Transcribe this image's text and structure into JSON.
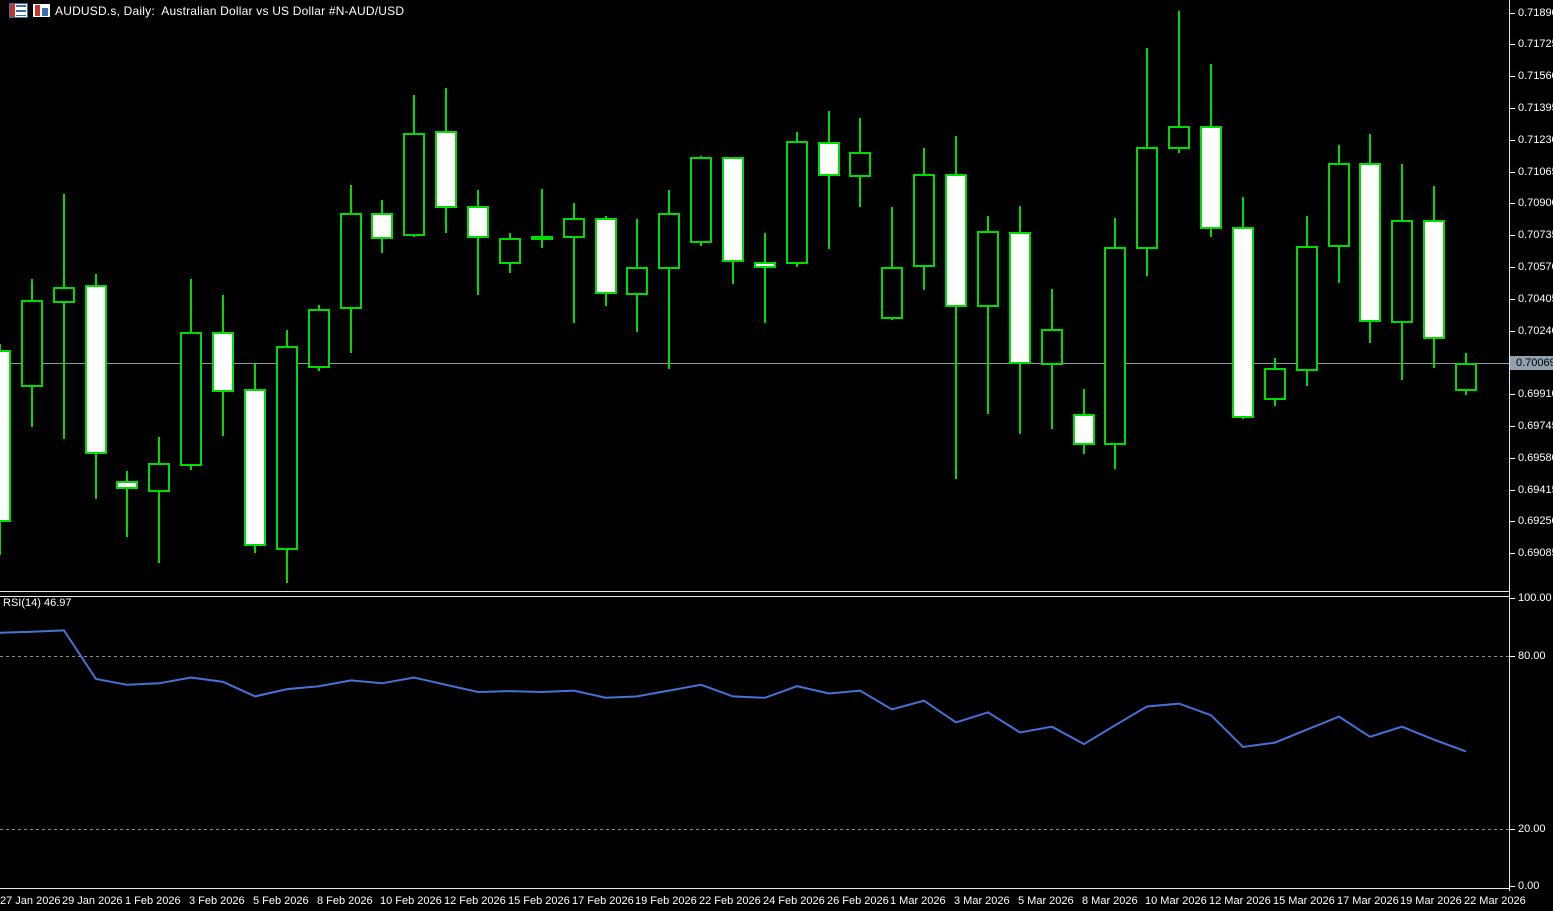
{
  "window": {
    "title": "AUDUSD.s, Daily:  Australian Dollar vs US Dollar #N-AUD/USD"
  },
  "icons": {
    "left": "quotes-table-icon",
    "right": "chart-window-icon"
  },
  "colors": {
    "background": "#000000",
    "candle_green": "#00DC00",
    "bear_body_fill": "#FFFFFF",
    "bull_body_fill": "#000000",
    "bid_line_gray": "#8F99A4",
    "price_box_gray": "#93A0AD",
    "rsi_blue": "#4573D9",
    "level_gray": "#8A8A8A",
    "axis_text": "#FFFFFF"
  },
  "price_axis": {
    "current_price": "0.70069",
    "ticks": [
      "0.71890",
      "0.71725",
      "0.71560",
      "0.71395",
      "0.71230",
      "0.71065",
      "0.70900",
      "0.70735",
      "0.70570",
      "0.70405",
      "0.70240",
      "0.69910",
      "0.69745",
      "0.69580",
      "0.69415",
      "0.69250",
      "0.69085"
    ]
  },
  "chart_data": {
    "type": "candlestick",
    "symbol": "AUDUSD.s",
    "timeframe": "Daily",
    "title": "Australian Dollar vs US Dollar #N-AUD/USD",
    "y_axis": {
      "min": 0.69085,
      "max": 0.7189,
      "tick_step": 0.00165
    },
    "bid_line": 0.70069,
    "x_axis": {
      "labels": [
        "27 Jan 2026",
        "29 Jan 2026",
        "1 Feb 2026",
        "3 Feb 2026",
        "5 Feb 2026",
        "8 Feb 2026",
        "10 Feb 2026",
        "12 Feb 2026",
        "15 Feb 2026",
        "17 Feb 2026",
        "19 Feb 2026",
        "22 Feb 2026",
        "24 Feb 2026",
        "26 Feb 2026",
        "1 Mar 2026",
        "3 Mar 2026",
        "5 Mar 2026",
        "8 Mar 2026",
        "10 Mar 2026",
        "12 Mar 2026",
        "15 Mar 2026",
        "17 Mar 2026",
        "19 Mar 2026",
        "22 Mar 2026"
      ]
    },
    "bars": [
      {
        "date": "27 Jan 2026",
        "o": 0.70136,
        "h": 0.70172,
        "l": 0.69073,
        "c": 0.69254
      },
      {
        "date": "28 Jan 2026",
        "o": 0.6995,
        "h": 0.7051,
        "l": 0.69737,
        "c": 0.70391
      },
      {
        "date": "29 Jan 2026",
        "o": 0.70391,
        "h": 0.70951,
        "l": 0.69679,
        "c": 0.70463
      },
      {
        "date": "30 Jan 2026",
        "o": 0.70469,
        "h": 0.70531,
        "l": 0.69368,
        "c": 0.69601
      },
      {
        "date": "1 Feb 2026",
        "o": 0.69452,
        "h": 0.69509,
        "l": 0.69166,
        "c": 0.69421
      },
      {
        "date": "2 Feb 2026",
        "o": 0.69405,
        "h": 0.6969,
        "l": 0.69036,
        "c": 0.69545
      },
      {
        "date": "3 Feb 2026",
        "o": 0.6954,
        "h": 0.7051,
        "l": 0.69514,
        "c": 0.70225
      },
      {
        "date": "4 Feb 2026",
        "o": 0.70225,
        "h": 0.70427,
        "l": 0.69695,
        "c": 0.69924
      },
      {
        "date": "5 Feb 2026",
        "o": 0.69929,
        "h": 0.70069,
        "l": 0.69088,
        "c": 0.69125
      },
      {
        "date": "6 Feb 2026",
        "o": 0.69109,
        "h": 0.70245,
        "l": 0.68932,
        "c": 0.70157
      },
      {
        "date": "8 Feb 2026",
        "o": 0.70054,
        "h": 0.70375,
        "l": 0.70028,
        "c": 0.70349
      },
      {
        "date": "9 Feb 2026",
        "o": 0.7036,
        "h": 0.70993,
        "l": 0.70121,
        "c": 0.70847
      },
      {
        "date": "10 Feb 2026",
        "o": 0.70847,
        "h": 0.70915,
        "l": 0.7064,
        "c": 0.70723
      },
      {
        "date": "11 Feb 2026",
        "o": 0.70738,
        "h": 0.71465,
        "l": 0.70723,
        "c": 0.71262
      },
      {
        "date": "12 Feb 2026",
        "o": 0.71268,
        "h": 0.71501,
        "l": 0.70744,
        "c": 0.70879
      },
      {
        "date": "13 Feb 2026",
        "o": 0.70879,
        "h": 0.70972,
        "l": 0.70422,
        "c": 0.70723
      },
      {
        "date": "15 Feb 2026",
        "o": 0.70593,
        "h": 0.70744,
        "l": 0.70541,
        "c": 0.70717
      },
      {
        "date": "16 Feb 2026",
        "o": 0.70723,
        "h": 0.70977,
        "l": 0.70666,
        "c": 0.70728
      },
      {
        "date": "17 Feb 2026",
        "o": 0.70723,
        "h": 0.709,
        "l": 0.70277,
        "c": 0.70817
      },
      {
        "date": "18 Feb 2026",
        "o": 0.70817,
        "h": 0.70832,
        "l": 0.70365,
        "c": 0.70432
      },
      {
        "date": "19 Feb 2026",
        "o": 0.70432,
        "h": 0.70817,
        "l": 0.70235,
        "c": 0.70567
      },
      {
        "date": "20 Feb 2026",
        "o": 0.70567,
        "h": 0.70972,
        "l": 0.70043,
        "c": 0.70847
      },
      {
        "date": "22 Feb 2026",
        "o": 0.70697,
        "h": 0.71148,
        "l": 0.70681,
        "c": 0.71133
      },
      {
        "date": "23 Feb 2026",
        "o": 0.71133,
        "h": 0.71143,
        "l": 0.70484,
        "c": 0.70598
      },
      {
        "date": "24 Feb 2026",
        "o": 0.70593,
        "h": 0.70744,
        "l": 0.70277,
        "c": 0.70572
      },
      {
        "date": "25 Feb 2026",
        "o": 0.70588,
        "h": 0.71268,
        "l": 0.70572,
        "c": 0.71216
      },
      {
        "date": "26 Feb 2026",
        "o": 0.71211,
        "h": 0.71377,
        "l": 0.70661,
        "c": 0.71045
      },
      {
        "date": "27 Feb 2026",
        "o": 0.7104,
        "h": 0.71345,
        "l": 0.70879,
        "c": 0.71159
      },
      {
        "date": "1 Mar 2026",
        "o": 0.70307,
        "h": 0.70879,
        "l": 0.70297,
        "c": 0.70567
      },
      {
        "date": "2 Mar 2026",
        "o": 0.70572,
        "h": 0.7119,
        "l": 0.70453,
        "c": 0.71045
      },
      {
        "date": "3 Mar 2026",
        "o": 0.71045,
        "h": 0.71252,
        "l": 0.69467,
        "c": 0.70365
      },
      {
        "date": "4 Mar 2026",
        "o": 0.70365,
        "h": 0.70832,
        "l": 0.69809,
        "c": 0.70749
      },
      {
        "date": "5 Mar 2026",
        "o": 0.70744,
        "h": 0.70889,
        "l": 0.69705,
        "c": 0.70069
      },
      {
        "date": "6 Mar 2026",
        "o": 0.70069,
        "h": 0.70458,
        "l": 0.69731,
        "c": 0.70245
      },
      {
        "date": "8 Mar 2026",
        "o": 0.69804,
        "h": 0.69939,
        "l": 0.69597,
        "c": 0.69654
      },
      {
        "date": "9 Mar 2026",
        "o": 0.69654,
        "h": 0.70822,
        "l": 0.69524,
        "c": 0.70671
      },
      {
        "date": "10 Mar 2026",
        "o": 0.70671,
        "h": 0.71704,
        "l": 0.70525,
        "c": 0.7119
      },
      {
        "date": "11 Mar 2026",
        "o": 0.7119,
        "h": 0.71896,
        "l": 0.71164,
        "c": 0.71298
      },
      {
        "date": "12 Mar 2026",
        "o": 0.71294,
        "h": 0.71626,
        "l": 0.70723,
        "c": 0.7077
      },
      {
        "date": "13 Mar 2026",
        "o": 0.7077,
        "h": 0.70931,
        "l": 0.69779,
        "c": 0.69789
      },
      {
        "date": "15 Mar 2026",
        "o": 0.69887,
        "h": 0.701,
        "l": 0.69846,
        "c": 0.70043
      },
      {
        "date": "16 Mar 2026",
        "o": 0.70038,
        "h": 0.70832,
        "l": 0.6995,
        "c": 0.70676
      },
      {
        "date": "17 Mar 2026",
        "o": 0.70676,
        "h": 0.71205,
        "l": 0.70489,
        "c": 0.71102
      },
      {
        "date": "18 Mar 2026",
        "o": 0.71107,
        "h": 0.71262,
        "l": 0.70173,
        "c": 0.70292
      },
      {
        "date": "19 Mar 2026",
        "o": 0.70287,
        "h": 0.71107,
        "l": 0.69981,
        "c": 0.70811
      },
      {
        "date": "20 Mar 2026",
        "o": 0.70811,
        "h": 0.70988,
        "l": 0.70048,
        "c": 0.70204
      },
      {
        "date": "22 Mar 2026",
        "o": 0.69934,
        "h": 0.70121,
        "l": 0.69908,
        "c": 0.70069
      }
    ],
    "indicator": {
      "name": "RSI",
      "period": 14,
      "value": 46.97,
      "label": "RSI(14) 46.97",
      "levels": [
        80,
        20
      ],
      "scale_ticks": [
        "100.00",
        "80.00",
        "20.00",
        "0.00"
      ],
      "scale_range": [
        0,
        100
      ],
      "values": [
        88.0,
        88.3,
        88.8,
        72.0,
        70.0,
        70.5,
        72.5,
        71.0,
        66.0,
        68.5,
        69.5,
        71.5,
        70.5,
        72.5,
        70.0,
        67.5,
        67.8,
        67.5,
        68.0,
        65.5,
        66.0,
        68.0,
        70.0,
        66.0,
        65.5,
        69.5,
        67.0,
        68.0,
        61.5,
        64.5,
        57.0,
        60.5,
        53.5,
        55.5,
        49.5,
        56.0,
        62.5,
        63.5,
        59.5,
        48.5,
        50.0,
        54.5,
        59.0,
        52.0,
        55.5,
        51.0,
        46.97
      ]
    }
  }
}
